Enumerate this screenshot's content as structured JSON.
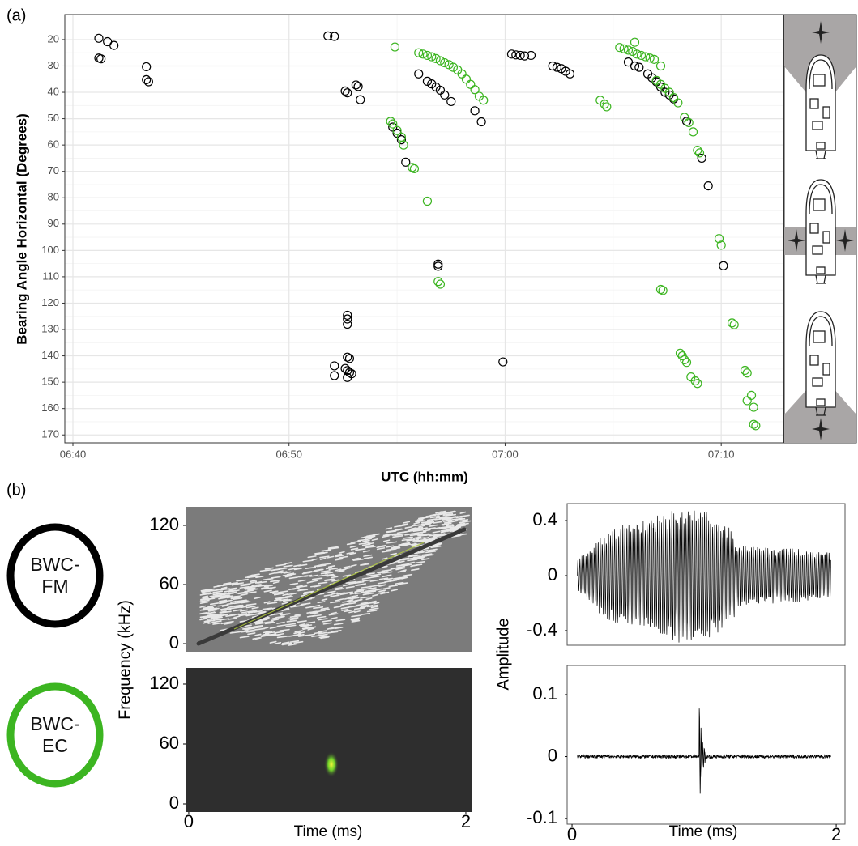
{
  "chart_data": [
    {
      "type": "scatter",
      "panel_label": "(a)",
      "x_label": "UTC (hh:mm)",
      "y_label": "Bearing Angle Horizontal (Degrees)",
      "xlim": [
        399.625,
        432.88
      ],
      "ylim": [
        10.5,
        173
      ],
      "y_reversed": true,
      "grid": true,
      "xticks": [
        {
          "value": 400,
          "label": "06:40"
        },
        {
          "value": 410,
          "label": "06:50"
        },
        {
          "value": 420,
          "label": "07:00"
        },
        {
          "value": 430,
          "label": "07:10"
        }
      ],
      "yticks": [
        20,
        30,
        40,
        50,
        60,
        70,
        80,
        90,
        100,
        110,
        120,
        130,
        140,
        150,
        160,
        170
      ],
      "series": [
        {
          "name": "BWC-FM",
          "color": "#000000",
          "x": [
            401.2,
            401.6,
            401.9,
            401.2,
            401.3,
            403.4,
            403.4,
            403.5,
            411.8,
            412.1,
            412.6,
            412.7,
            413.1,
            413.2,
            413.3,
            412.7,
            412.7,
            412.7,
            412.7,
            412.8,
            412.1,
            412.1,
            412.6,
            412.7,
            412.8,
            412.7,
            412.9,
            414.8,
            415.0,
            415.2,
            415.4,
            416.0,
            416.4,
            416.6,
            416.8,
            417.0,
            417.2,
            417.5,
            418.6,
            418.9,
            420.3,
            420.5,
            420.7,
            420.9,
            421.2,
            422.2,
            422.4,
            422.6,
            422.8,
            423.0,
            425.7,
            426.0,
            426.2,
            426.6,
            426.8,
            427.0,
            427.2,
            427.4,
            427.6,
            427.8,
            428.4,
            429.1,
            429.4,
            430.1,
            416.9,
            416.9,
            419.9
          ],
          "values": [
            19.5,
            20.8,
            22.2,
            27.0,
            27.3,
            30.3,
            35.2,
            36.0,
            18.6,
            18.8,
            39.5,
            40.2,
            37.2,
            37.8,
            42.8,
            124.6,
            126.0,
            128.0,
            140.5,
            141.0,
            143.8,
            147.5,
            144.8,
            145.6,
            146.3,
            148.2,
            146.8,
            53.2,
            55.5,
            58.0,
            66.5,
            33.0,
            35.8,
            36.8,
            38.0,
            39.2,
            41.0,
            43.5,
            47.0,
            51.2,
            25.5,
            25.8,
            26.0,
            26.2,
            26.0,
            30.0,
            30.5,
            31.0,
            32.0,
            33.0,
            28.5,
            30.0,
            30.5,
            33.0,
            34.5,
            36.0,
            38.0,
            40.0,
            41.0,
            42.5,
            51.0,
            65.0,
            75.5,
            105.8,
            105.2,
            106.0,
            142.3
          ]
        },
        {
          "name": "BWC-EC",
          "color": "#3cb521",
          "x": [
            414.9,
            416.0,
            416.2,
            416.4,
            416.6,
            416.8,
            417.0,
            417.2,
            417.4,
            417.6,
            417.8,
            418.0,
            418.2,
            418.4,
            418.6,
            418.8,
            419.0,
            414.7,
            414.8,
            415.0,
            415.2,
            415.3,
            415.7,
            415.8,
            416.4,
            416.9,
            417.0,
            424.4,
            424.6,
            424.7,
            425.3,
            425.5,
            425.7,
            425.9,
            426.1,
            426.3,
            426.5,
            426.0,
            426.7,
            426.9,
            427.2,
            427.0,
            427.2,
            427.4,
            427.6,
            427.8,
            428.0,
            428.3,
            428.5,
            428.7,
            428.9,
            429.0,
            427.2,
            427.3,
            428.1,
            428.2,
            428.3,
            428.4,
            428.6,
            428.8,
            428.9,
            429.9,
            430.0,
            430.5,
            430.6,
            431.1,
            431.2,
            431.2,
            431.4,
            431.5,
            431.5,
            431.6
          ],
          "values": [
            22.8,
            25.0,
            25.5,
            26.0,
            26.5,
            27.2,
            28.0,
            28.8,
            29.5,
            30.5,
            31.5,
            33.0,
            35.0,
            37.0,
            39.0,
            41.5,
            43.0,
            51.0,
            52.0,
            54.5,
            57.0,
            60.0,
            68.5,
            69.0,
            81.3,
            111.8,
            112.8,
            43.0,
            44.5,
            45.5,
            23.0,
            23.5,
            24.0,
            24.5,
            25.5,
            26.0,
            26.5,
            21.0,
            27.0,
            27.5,
            30.0,
            35.5,
            37.0,
            38.5,
            40.0,
            42.0,
            44.0,
            49.5,
            51.5,
            55.0,
            62.0,
            63.0,
            114.8,
            115.2,
            139.0,
            140.0,
            141.5,
            142.5,
            148.0,
            149.5,
            150.5,
            95.5,
            98.0,
            127.5,
            128.2,
            145.5,
            146.5,
            157.0,
            155.0,
            159.5,
            166.0,
            166.5
          ]
        }
      ]
    },
    {
      "type": "spectrogram",
      "panel_label": "(b)",
      "y_label": "Frequency (kHz)",
      "xlim": [
        -0.023,
        2.047
      ],
      "ylim": [
        -8.2,
        138.9
      ],
      "yticks": [
        0,
        60,
        120
      ]
    },
    {
      "type": "spectrogram",
      "x_label": "Time (ms)",
      "xlim": [
        -0.023,
        2.047
      ],
      "ylim": [
        -8.1,
        136.2
      ],
      "xticks": [
        0,
        2
      ],
      "yticks": [
        0,
        60,
        120
      ]
    },
    {
      "type": "waveform",
      "y_label": "Amplitude",
      "xlim": [
        -0.037,
        2.067
      ],
      "ylim": [
        -0.506,
        0.524
      ],
      "yticks": [
        -0.4,
        0,
        0.4
      ]
    },
    {
      "type": "waveform",
      "x_label": "Time (ms)",
      "xlim": [
        -0.037,
        2.067
      ],
      "ylim": [
        -0.109,
        0.147
      ],
      "xticks": [
        0,
        2
      ],
      "yticks": [
        -0.1,
        0,
        0.1
      ]
    }
  ]
}
